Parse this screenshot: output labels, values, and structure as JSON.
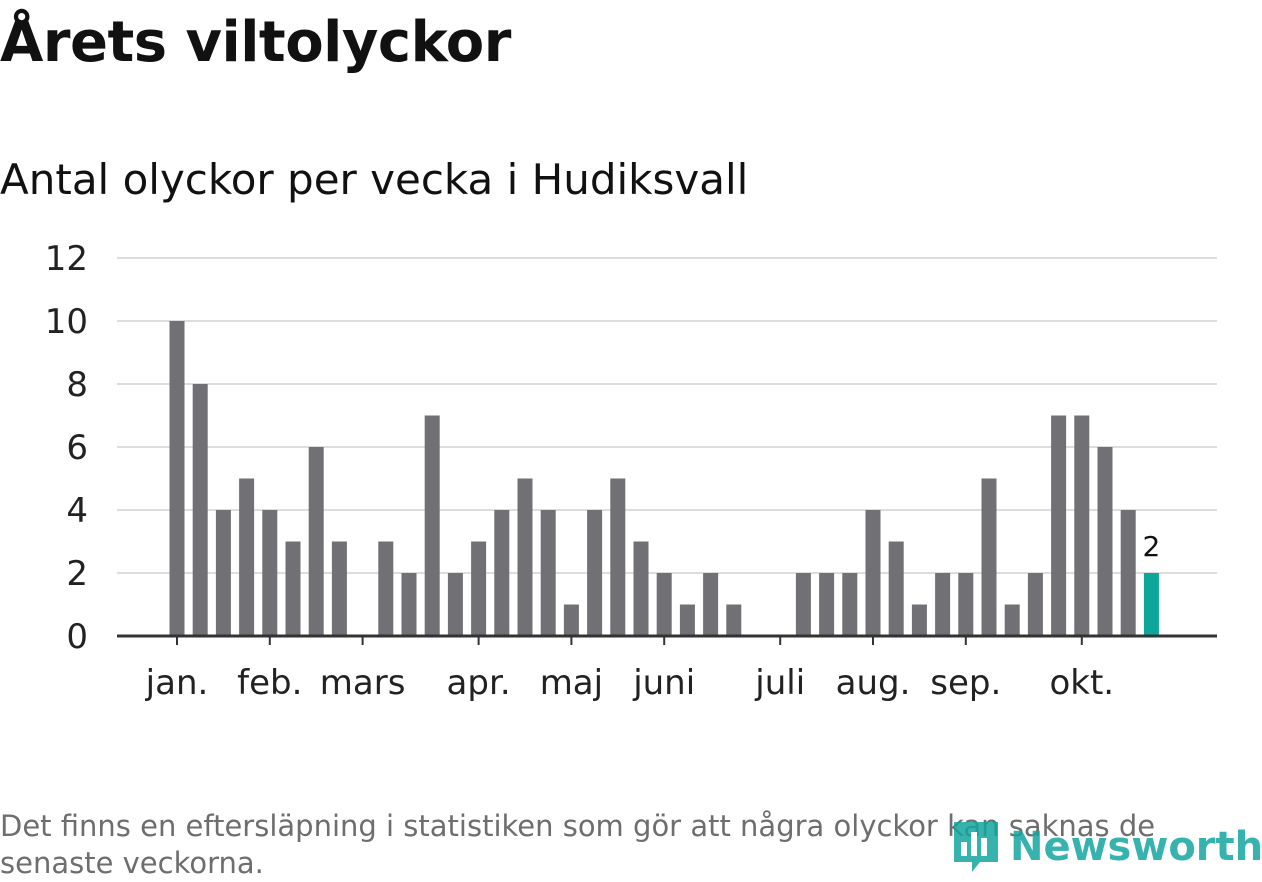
{
  "title": "Årets viltolyckor",
  "subtitle": "Antal olyckor per vecka i Hudiksvall",
  "footnote": "Det finns en eftersläpning i statistiken som gör att några olyckor kan saknas de senaste veckorna.",
  "brand": {
    "name": "Newsworthy",
    "icon": "bar-chart-logo-icon",
    "color": "#14a6a0"
  },
  "colors": {
    "bar": "#707075",
    "highlight": "#0ea59b",
    "grid": "#dddddd",
    "axis": "#333333"
  },
  "chart_data": {
    "type": "bar",
    "title": "Antal olyckor per vecka i Hudiksvall",
    "xlabel": "",
    "ylabel": "",
    "ylim": [
      0,
      12
    ],
    "yticks": [
      0,
      2,
      4,
      6,
      8,
      10,
      12
    ],
    "grid": true,
    "series": [
      {
        "name": "Antal olyckor",
        "values": [
          10,
          8,
          4,
          5,
          4,
          3,
          6,
          3,
          0,
          3,
          2,
          7,
          2,
          3,
          4,
          5,
          4,
          1,
          4,
          5,
          3,
          2,
          1,
          2,
          1,
          0,
          0,
          2,
          2,
          2,
          4,
          3,
          1,
          2,
          2,
          5,
          1,
          2,
          7,
          7,
          6,
          4,
          2
        ]
      }
    ],
    "highlight_last": true,
    "data_labels": [
      {
        "index": 42,
        "text": "2"
      }
    ],
    "month_ticks": [
      {
        "label": "jan.",
        "index": 0
      },
      {
        "label": "feb.",
        "index": 4
      },
      {
        "label": "mars",
        "index": 8
      },
      {
        "label": "apr.",
        "index": 13
      },
      {
        "label": "maj",
        "index": 17
      },
      {
        "label": "juni",
        "index": 21
      },
      {
        "label": "juli",
        "index": 26
      },
      {
        "label": "aug.",
        "index": 30
      },
      {
        "label": "sep.",
        "index": 34
      },
      {
        "label": "okt.",
        "index": 39
      }
    ]
  }
}
